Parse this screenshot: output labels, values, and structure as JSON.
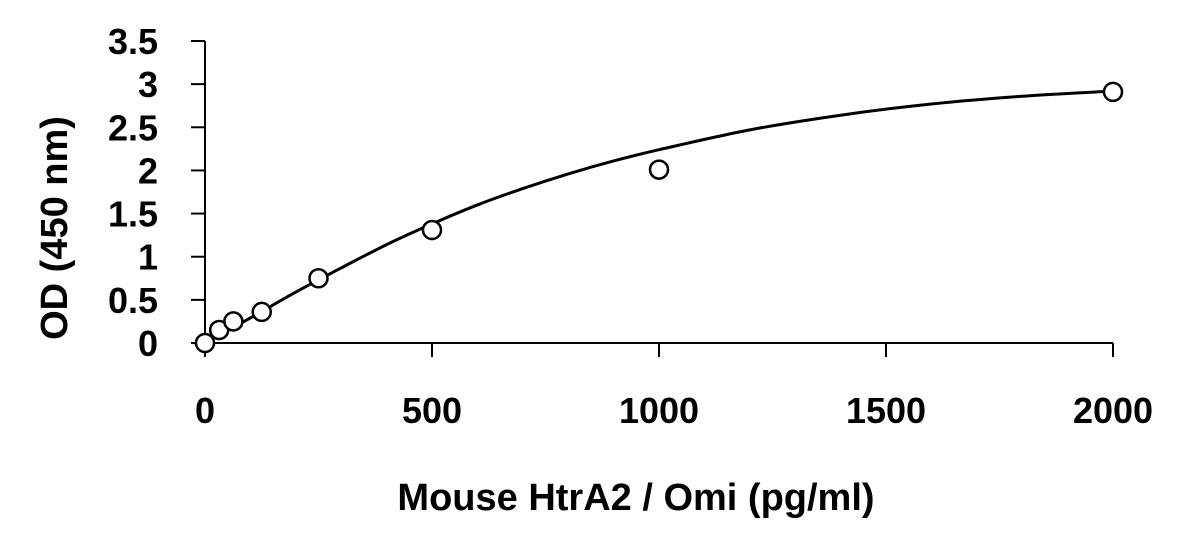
{
  "chart_data": {
    "type": "scatter",
    "title": "",
    "xlabel": "Mouse HtrA2 / Omi (pg/ml)",
    "ylabel": "OD (450 nm)",
    "xlim": [
      0,
      2000
    ],
    "ylim": [
      0,
      3.5
    ],
    "x_ticks": [
      "0",
      "500",
      "1000",
      "1500",
      "2000"
    ],
    "y_ticks": [
      "0",
      "0.5",
      "1",
      "1.5",
      "2",
      "2.5",
      "3",
      "3.5"
    ],
    "grid": false,
    "legend": "none",
    "series": [
      {
        "marker": "open-circle",
        "x": [
          0,
          31.25,
          62.5,
          125,
          250,
          500,
          1000,
          2000
        ],
        "y": [
          0.0,
          0.15,
          0.25,
          0.36,
          0.75,
          1.31,
          2.01,
          2.91
        ]
      }
    ],
    "fit_curve": {
      "style": "smooth-line",
      "x": [
        0,
        100,
        200,
        300,
        400,
        500,
        600,
        700,
        800,
        900,
        1000,
        1200,
        1400,
        1600,
        1800,
        2000
      ],
      "y": [
        0.0,
        0.29,
        0.59,
        0.87,
        1.14,
        1.38,
        1.6,
        1.79,
        1.96,
        2.11,
        2.24,
        2.47,
        2.64,
        2.77,
        2.86,
        2.92
      ]
    },
    "colors": {
      "marker_stroke": "#000000",
      "marker_fill": "#ffffff",
      "line": "#000000"
    }
  }
}
